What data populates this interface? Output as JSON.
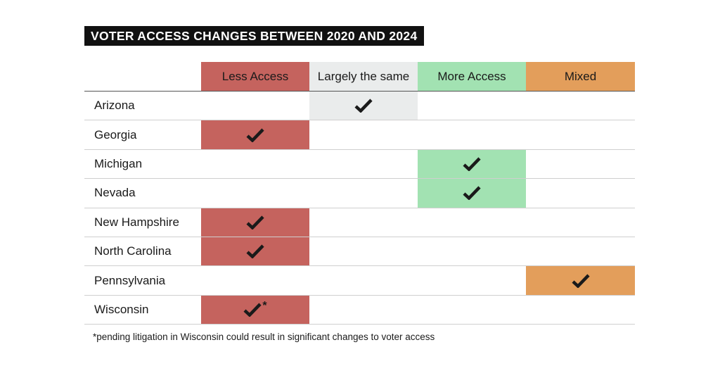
{
  "title": "VOTER ACCESS CHANGES BETWEEN 2020 AND 2024",
  "chart_data": {
    "type": "table",
    "columns": [
      {
        "label": "Less Access",
        "color": "#c5635e"
      },
      {
        "label": "Largely the same",
        "color": "#eaecec"
      },
      {
        "label": "More Access",
        "color": "#a2e2b2"
      },
      {
        "label": "Mixed",
        "color": "#e39e5b"
      }
    ],
    "rows": [
      {
        "state": "Arizona",
        "category": 1,
        "note": ""
      },
      {
        "state": "Georgia",
        "category": 0,
        "note": ""
      },
      {
        "state": "Michigan",
        "category": 2,
        "note": ""
      },
      {
        "state": "Nevada",
        "category": 2,
        "note": ""
      },
      {
        "state": "New Hampshire",
        "category": 0,
        "note": ""
      },
      {
        "state": "North Carolina",
        "category": 0,
        "note": ""
      },
      {
        "state": "Pennsylvania",
        "category": 3,
        "note": ""
      },
      {
        "state": "Wisconsin",
        "category": 0,
        "note": "*"
      }
    ]
  },
  "footnote": "*pending litigation in Wisconsin could result in significant changes to voter access"
}
